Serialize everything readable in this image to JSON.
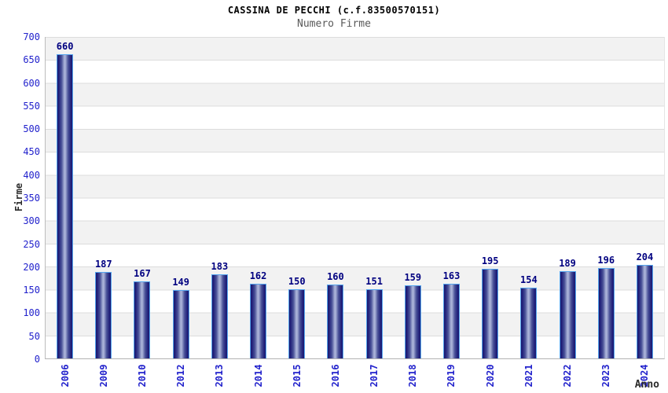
{
  "header": {
    "title": "CASSINA DE PECCHI (c.f.83500570151)",
    "subtitle": "Numero Firme"
  },
  "chart_data": {
    "type": "bar",
    "title": "CASSINA DE PECCHI (c.f.83500570151)",
    "subtitle": "Numero Firme",
    "xlabel": "Anno",
    "ylabel": "Firme",
    "categories": [
      "2006",
      "2009",
      "2010",
      "2012",
      "2013",
      "2014",
      "2015",
      "2016",
      "2017",
      "2018",
      "2019",
      "2020",
      "2021",
      "2022",
      "2023",
      "2024"
    ],
    "values": [
      660,
      187,
      167,
      149,
      183,
      162,
      150,
      160,
      151,
      159,
      163,
      195,
      154,
      189,
      196,
      204
    ],
    "ylim": [
      0,
      700
    ],
    "yticks": [
      0,
      50,
      100,
      150,
      200,
      250,
      300,
      350,
      400,
      450,
      500,
      550,
      600,
      650,
      700
    ],
    "grid": "horizontal-50-step-with-alternating-bands",
    "legend": "none",
    "value_labels": "above-bars",
    "colors": {
      "title": "#000000",
      "subtitle": "#5a5a5a",
      "tick_label": "#2222cc",
      "value_label": "#000080",
      "axis_title": "#2b2b2b",
      "bar_edge": "#191970",
      "bar_center": "#a9b2d8",
      "bar_border": "#55a5ee",
      "band_gray": "#f2f2f2",
      "gridline": "#dcdcdc"
    }
  }
}
